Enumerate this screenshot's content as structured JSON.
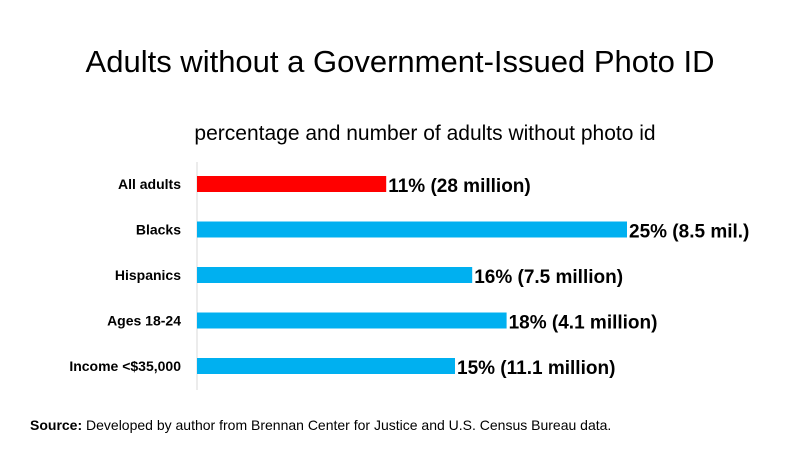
{
  "chart_data": {
    "type": "bar",
    "orientation": "horizontal",
    "title": "Adults without a Government-Issued Photo ID",
    "subtitle": "percentage and number of adults without photo id",
    "categories": [
      "All adults",
      "Blacks",
      "Hispanics",
      "Ages 18-24",
      "Income <$35,000"
    ],
    "values": [
      11,
      25,
      16,
      18,
      15
    ],
    "data_labels": [
      "11% (28 million)",
      "25% (8.5 mil.)",
      "16% (7.5 million)",
      "18% (4.1  million)",
      "15% (11.1 million)"
    ],
    "colors": [
      "#ff0000",
      "#00b0f0",
      "#00b0f0",
      "#00b0f0",
      "#00b0f0"
    ],
    "xlim": [
      0,
      25
    ],
    "grid": false,
    "legend": "none"
  },
  "source": {
    "label": "Source:",
    "text": "Developed by author from Brennan Center for Justice and U.S. Census Bureau data."
  }
}
